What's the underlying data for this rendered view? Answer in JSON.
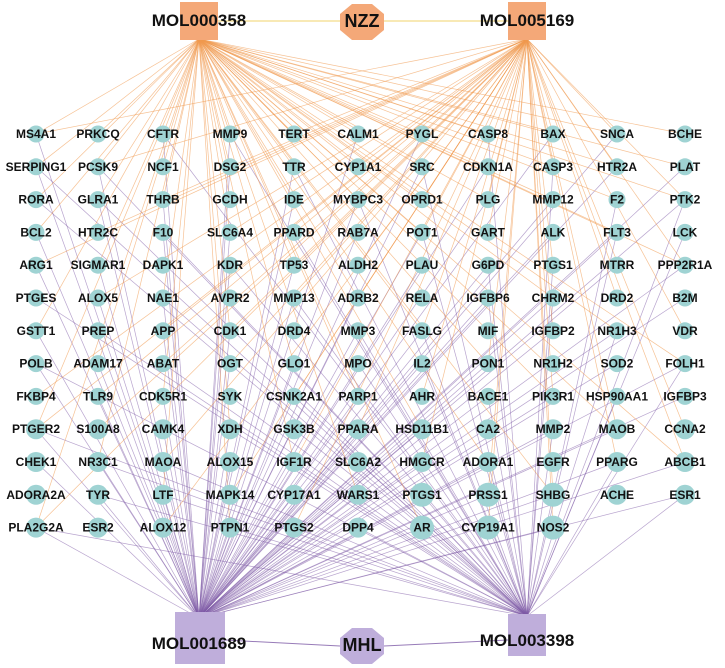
{
  "hubs_top": {
    "left": "MOL000358",
    "center": "NZZ",
    "right": "MOL005169"
  },
  "hubs_bottom": {
    "left": "MOL001689",
    "center": "MHL",
    "right": "MOL003398"
  },
  "colors": {
    "orange_hub": "#f4a878",
    "orange_edge": "#f09a4e",
    "center_edge": "#f2d36b",
    "purple_hub": "#bfaedb",
    "purple_edge": "#7d5aa6",
    "target_node": "#9fd3d3"
  },
  "grid": [
    [
      "MS4A1",
      "PRKCQ",
      "CFTR",
      "MMP9",
      "TERT",
      "CALM1",
      "PYGL",
      "CASP8",
      "BAX",
      "SNCA",
      "BCHE"
    ],
    [
      "SERPING1",
      "PCSK9",
      "NCF1",
      "DSG2",
      "TTR",
      "CYP1A1",
      "SRC",
      "CDKN1A",
      "CASP3",
      "HTR2A",
      "PLAT"
    ],
    [
      "RORA",
      "GLRA1",
      "THRB",
      "GCDH",
      "IDE",
      "MYBPC3",
      "OPRD1",
      "PLG",
      "MMP12",
      "F2",
      "PTK2"
    ],
    [
      "BCL2",
      "HTR2C",
      "F10",
      "SLC6A4",
      "PPARD",
      "RAB7A",
      "POT1",
      "GART",
      "ALK",
      "FLT3",
      "LCK"
    ],
    [
      "ARG1",
      "SIGMAR1",
      "DAPK1",
      "KDR",
      "TP53",
      "ALDH2",
      "PLAU",
      "G6PD",
      "PTGS1",
      "MTRR",
      "PPP2R1A"
    ],
    [
      "PTGES",
      "ALOX5",
      "NAE1",
      "AVPR2",
      "MMP13",
      "ADRB2",
      "RELA",
      "IGFBP6",
      "CHRM2",
      "DRD2",
      "B2M"
    ],
    [
      "GSTT1",
      "PREP",
      "APP",
      "CDK1",
      "DRD4",
      "MMP3",
      "FASLG",
      "MIF",
      "IGFBP2",
      "NR1H3",
      "VDR"
    ],
    [
      "POLB",
      "ADAM17",
      "ABAT",
      "OGT",
      "GLO1",
      "MPO",
      "IL2",
      "PON1",
      "NR1H2",
      "SOD2",
      "FOLH1"
    ],
    [
      "FKBP4",
      "TLR9",
      "CDK5R1",
      "SYK",
      "CSNK2A1",
      "PARP1",
      "AHR",
      "BACE1",
      "PIK3R1",
      "HSP90AA1",
      "IGFBP3"
    ],
    [
      "PTGER2",
      "S100A8",
      "CAMK4",
      "XDH",
      "GSK3B",
      "PPARA",
      "HSD11B1",
      "CA2",
      "MMP2",
      "MAOB",
      "CCNA2"
    ],
    [
      "CHEK1",
      "NR3C1",
      "MAOA",
      "ALOX15",
      "IGF1R",
      "SLC6A2",
      "HMGCR",
      "ADORA1",
      "EGFR",
      "PPARG",
      "ABCB1"
    ],
    [
      "ADORA2A",
      "TYR",
      "LTF",
      "MAPK14",
      "CYP17A1",
      "WARS1",
      "PTGS1",
      "PRSS1",
      "SHBG",
      "ACHE",
      "ESR1"
    ],
    [
      "PLA2G2A",
      "ESR2",
      "ALOX12",
      "PTPN1",
      "PTGS2",
      "DPP4",
      "AR",
      "CYP19A1",
      "NOS2"
    ]
  ]
}
